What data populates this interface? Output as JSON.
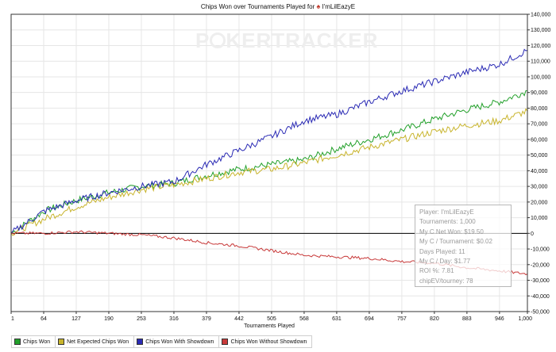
{
  "chart_data": {
    "type": "line",
    "title_prefix": "Chips Won over Tournaments Played for",
    "player": "I'mLilEazyE",
    "watermark": "POKERTRACKER",
    "xlabel": "Tournaments Played",
    "ylabel": "",
    "xlim": [
      1,
      1000
    ],
    "ylim": [
      -50000,
      140000
    ],
    "x_ticks": [
      1,
      64,
      127,
      190,
      253,
      316,
      379,
      442,
      505,
      568,
      631,
      694,
      757,
      820,
      883,
      946,
      1000
    ],
    "x_tick_labels": [
      "1",
      "64",
      "127",
      "190",
      "253",
      "316",
      "379",
      "442",
      "505",
      "568",
      "631",
      "694",
      "757",
      "820",
      "883",
      "946",
      "1,000"
    ],
    "y_ticks": [
      -50000,
      -40000,
      -30000,
      -20000,
      -10000,
      0,
      10000,
      20000,
      30000,
      40000,
      50000,
      60000,
      70000,
      80000,
      90000,
      100000,
      110000,
      120000,
      130000,
      140000
    ],
    "y_tick_labels": [
      "-50,000",
      "-40,000",
      "-30,000",
      "-20,000",
      "-10,000",
      "0",
      "10,000",
      "20,000",
      "30,000",
      "40,000",
      "50,000",
      "60,000",
      "70,000",
      "80,000",
      "90,000",
      "100,000",
      "110,000",
      "120,000",
      "130,000",
      "140,000"
    ],
    "grid": true,
    "legend_position": "bottom-left",
    "x": [
      1,
      64,
      127,
      190,
      253,
      316,
      379,
      442,
      505,
      568,
      631,
      694,
      757,
      820,
      883,
      946,
      1000
    ],
    "series": [
      {
        "name": "Chips Won",
        "color": "#22a02a",
        "values": [
          0,
          14000,
          21000,
          26000,
          30000,
          32000,
          37000,
          41000,
          44000,
          47000,
          54000,
          60000,
          66000,
          73000,
          79000,
          84000,
          91000
        ]
      },
      {
        "name": "Net Expected Chips Won",
        "color": "#c8b42c",
        "values": [
          0,
          9000,
          17000,
          23000,
          28000,
          31000,
          35000,
          39000,
          41000,
          45000,
          50000,
          55000,
          60000,
          65000,
          69000,
          72000,
          78000
        ]
      },
      {
        "name": "Chips Won With Showdown",
        "color": "#2a2ab4",
        "values": [
          0,
          14000,
          21000,
          26000,
          30000,
          33000,
          44000,
          53000,
          62000,
          72000,
          76000,
          84000,
          91000,
          97000,
          103000,
          108000,
          117000
        ]
      },
      {
        "name": "Chips Won Without Showdown",
        "color": "#c83a3a",
        "values": [
          0,
          0,
          1000,
          0,
          -1000,
          -3000,
          -6000,
          -8000,
          -11000,
          -14000,
          -15000,
          -16000,
          -18000,
          -19000,
          -22000,
          -24000,
          -26000
        ]
      }
    ]
  },
  "stats": [
    "Player: I'mLilEazyE",
    "Tournaments: 1,000",
    "My C Net Won: $19.50",
    "My C / Tournament: $0.02",
    "Days Played: 11",
    "My C / Day: $1.77",
    "ROI %: 7.81",
    "chipEV/tourney: 78"
  ],
  "colors": {
    "plot_border": "#333333",
    "grid": "#e6e6e6",
    "zero_line": "#000000"
  }
}
